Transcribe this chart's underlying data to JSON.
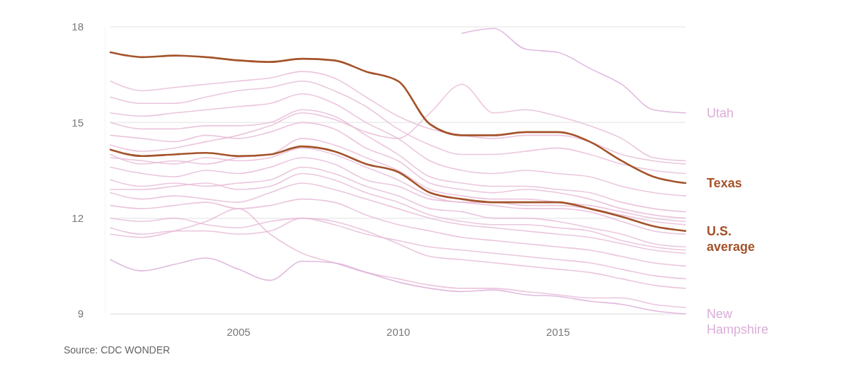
{
  "chart_data": {
    "type": "line",
    "x": [
      2001,
      2002,
      2003,
      2004,
      2005,
      2006,
      2007,
      2008,
      2009,
      2010,
      2011,
      2012,
      2013,
      2014,
      2015,
      2016,
      2017,
      2018,
      2019
    ],
    "xlim": [
      2001,
      2019
    ],
    "xticks": [
      2005,
      2010,
      2015
    ],
    "ylim": [
      9,
      18
    ],
    "yticks": [
      9,
      12,
      15,
      18
    ],
    "grid": "y",
    "marker": "none",
    "line_style": "solid",
    "annotations": [
      "Source: CDC WONDER"
    ],
    "series": [
      {
        "color": "#e8bcd8",
        "values": [
          16.3,
          16.0,
          16.1,
          16.2,
          16.3,
          16.4,
          16.6,
          16.4,
          15.8,
          15.2,
          14.8,
          14.6,
          14.5,
          14.6,
          14.6,
          14.4,
          14.0,
          13.8,
          13.7
        ]
      },
      {
        "color": "#e8bcd8",
        "values": [
          15.8,
          15.6,
          15.6,
          15.8,
          16.0,
          16.1,
          16.3,
          16.0,
          15.5,
          14.8,
          14.3,
          14.0,
          14.0,
          14.1,
          14.2,
          14.0,
          13.7,
          13.5,
          13.4
        ]
      },
      {
        "color": "#e8bcd8",
        "values": [
          15.3,
          15.2,
          15.3,
          15.4,
          15.5,
          15.6,
          15.9,
          15.6,
          15.0,
          14.5,
          13.8,
          13.5,
          13.4,
          13.5,
          13.4,
          13.3,
          13.0,
          12.8,
          12.7
        ]
      },
      {
        "color": "#e8bcd8",
        "values": [
          15.0,
          14.8,
          14.8,
          14.9,
          14.9,
          15.0,
          15.4,
          15.2,
          14.6,
          14.0,
          13.3,
          13.1,
          13.0,
          13.0,
          12.9,
          12.8,
          12.5,
          12.3,
          12.2
        ]
      },
      {
        "color": "#e8bcd8",
        "values": [
          14.6,
          14.5,
          14.4,
          14.6,
          14.5,
          14.7,
          15.0,
          14.8,
          14.2,
          13.8,
          13.1,
          12.9,
          12.8,
          12.9,
          12.8,
          12.6,
          12.3,
          12.1,
          12.0
        ]
      },
      {
        "color": "#e8bcd8",
        "values": [
          14.0,
          13.7,
          13.8,
          13.7,
          13.9,
          14.0,
          14.5,
          14.3,
          13.9,
          13.5,
          12.9,
          12.7,
          12.6,
          12.6,
          12.5,
          12.4,
          12.2,
          12.0,
          11.9
        ]
      },
      {
        "color": "#e8bcd8",
        "values": [
          13.6,
          13.4,
          13.3,
          13.5,
          13.4,
          13.6,
          13.9,
          13.7,
          13.2,
          13.0,
          12.6,
          12.5,
          12.4,
          12.3,
          12.3,
          12.2,
          11.9,
          11.6,
          11.5
        ]
      },
      {
        "color": "#e8bcd8",
        "values": [
          13.2,
          13.0,
          13.1,
          13.0,
          13.1,
          13.2,
          13.6,
          13.4,
          13.0,
          12.7,
          12.3,
          12.2,
          12.0,
          12.0,
          11.9,
          11.7,
          11.5,
          11.2,
          11.1
        ]
      },
      {
        "color": "#e8bcd8",
        "values": [
          12.8,
          12.6,
          12.7,
          12.6,
          12.5,
          12.8,
          13.1,
          12.9,
          12.6,
          12.3,
          12.0,
          11.8,
          11.7,
          11.6,
          11.5,
          11.4,
          11.2,
          11.0,
          10.9
        ]
      },
      {
        "color": "#e8bcd8",
        "values": [
          12.4,
          12.3,
          12.4,
          12.5,
          12.3,
          12.4,
          12.6,
          12.5,
          12.1,
          11.8,
          11.6,
          11.4,
          11.3,
          11.2,
          11.1,
          11.0,
          10.8,
          10.6,
          10.5
        ]
      },
      {
        "color": "#e8bcd8",
        "values": [
          12.0,
          11.9,
          12.0,
          11.8,
          11.7,
          11.9,
          12.0,
          11.8,
          11.5,
          11.3,
          11.1,
          11.0,
          10.9,
          10.8,
          10.7,
          10.6,
          10.4,
          10.2,
          10.1
        ]
      },
      {
        "color": "#e8bcd8",
        "values": [
          11.7,
          11.5,
          11.6,
          11.6,
          11.5,
          11.6,
          12.0,
          11.9,
          11.6,
          11.2,
          10.8,
          10.7,
          10.6,
          10.5,
          10.4,
          10.3,
          10.1,
          9.9,
          9.8
        ]
      },
      {
        "color": "#e8bcd8",
        "values": [
          11.5,
          11.4,
          11.6,
          11.9,
          12.3,
          11.5,
          10.9,
          10.6,
          10.3,
          10.1,
          9.9,
          9.8,
          9.8,
          9.7,
          9.6,
          9.5,
          9.5,
          9.3,
          9.2
        ]
      },
      {
        "color": "#e8bcd8",
        "values": [
          14.3,
          14.1,
          14.2,
          14.4,
          14.6,
          14.9,
          15.3,
          15.1,
          14.7,
          14.5,
          15.3,
          16.2,
          15.3,
          15.4,
          15.2,
          14.9,
          14.5,
          13.9,
          13.8
        ]
      },
      {
        "color": "#e8bcd8",
        "values": [
          13.9,
          13.8,
          13.7,
          13.9,
          13.8,
          13.9,
          14.2,
          14.0,
          13.6,
          13.2,
          12.7,
          12.5,
          12.5,
          12.4,
          12.4,
          12.3,
          12.1,
          11.9,
          11.8
        ]
      },
      {
        "color": "#e8bcd8",
        "values": [
          12.9,
          12.9,
          13.0,
          13.1,
          12.9,
          13.0,
          13.4,
          13.2,
          12.8,
          12.5,
          12.1,
          11.9,
          11.8,
          11.8,
          11.7,
          11.6,
          11.3,
          11.1,
          11.0
        ]
      },
      {
        "name": "Utah",
        "color": "#dcaed8",
        "values": [
          null,
          null,
          null,
          null,
          null,
          null,
          null,
          null,
          null,
          null,
          null,
          17.8,
          17.95,
          17.3,
          17.2,
          16.7,
          16.2,
          15.4,
          15.3
        ]
      },
      {
        "name": "New Hampshire",
        "color": "#dcaed8",
        "values": [
          10.7,
          10.35,
          10.55,
          10.75,
          10.4,
          10.05,
          10.65,
          10.6,
          10.3,
          10.0,
          9.8,
          9.7,
          9.75,
          9.6,
          9.55,
          9.4,
          9.3,
          9.1,
          9.0
        ]
      },
      {
        "name": "U.S. average",
        "color": "#a4532a",
        "values": [
          14.15,
          13.95,
          14.0,
          14.05,
          13.95,
          14.0,
          14.25,
          14.1,
          13.7,
          13.45,
          12.8,
          12.6,
          12.5,
          12.5,
          12.5,
          12.3,
          12.05,
          11.75,
          11.6
        ]
      },
      {
        "name": "Texas",
        "color": "#a4532a",
        "values": [
          17.2,
          17.05,
          17.1,
          17.05,
          16.95,
          16.9,
          17.0,
          16.95,
          16.6,
          16.3,
          14.95,
          14.6,
          14.6,
          14.7,
          14.7,
          14.4,
          13.8,
          13.3,
          13.1
        ]
      }
    ]
  }
}
